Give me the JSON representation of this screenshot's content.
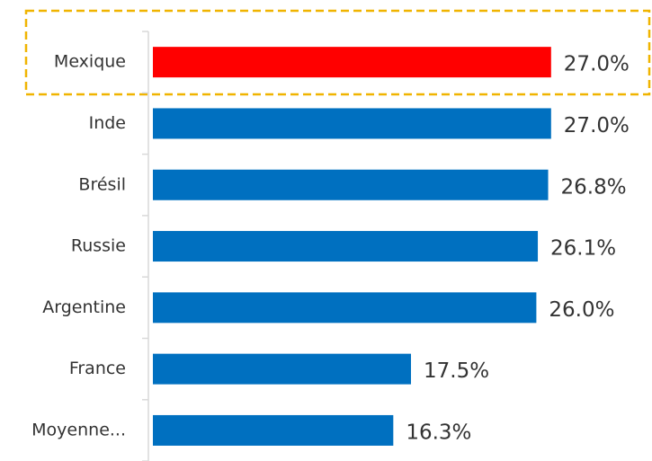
{
  "chart_data": {
    "type": "bar",
    "orientation": "horizontal",
    "categories": [
      "Mexique",
      "Inde",
      "Brésil",
      "Russie",
      "Argentine",
      "France",
      "Moyenne..."
    ],
    "values": [
      27.0,
      27.0,
      26.8,
      26.1,
      26.0,
      17.5,
      16.3
    ],
    "value_labels": [
      "27.0%",
      "27.0%",
      "26.8%",
      "26.1%",
      "26.0%",
      "17.5%",
      "16.3%"
    ],
    "colors": [
      "#ff0000",
      "#0070c0",
      "#0070c0",
      "#0070c0",
      "#0070c0",
      "#0070c0",
      "#0070c0"
    ]
  }
}
